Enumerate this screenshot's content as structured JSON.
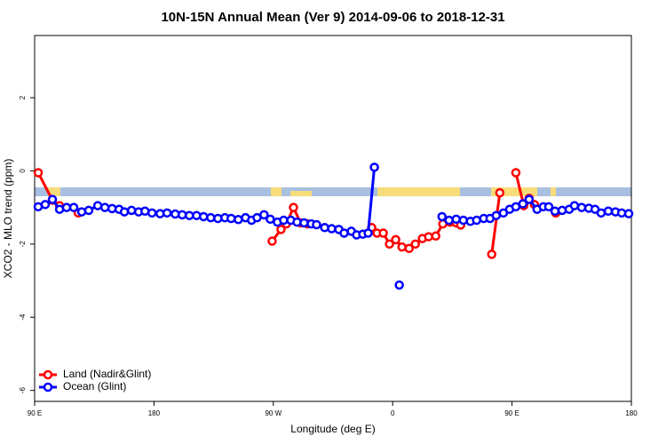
{
  "chart_data": {
    "type": "line",
    "title": "10N-15N Annual Mean (Ver 9)   2014-09-06 to 2018-12-31",
    "x_label": "Longitude (deg E)",
    "y_label": "XCO2 - MLO trend (ppm)",
    "xlim": [
      90,
      540
    ],
    "ylim": [
      -6.3,
      3.7
    ],
    "xticks": [
      {
        "value": 90,
        "label": "90 E"
      },
      180,
      {
        "value": 270,
        "label": "90 W"
      },
      {
        "value": 360,
        "label": "0"
      },
      {
        "value": 450,
        "label": "90 E"
      },
      {
        "value": 540,
        "label": "180"
      }
    ],
    "yticks": [
      2,
      0,
      -2,
      -4,
      -6
    ],
    "legend": "bottom-left",
    "series": [
      {
        "name": "Land (Nadir&Glint)",
        "color": "#ff0000",
        "x": [
          92.7,
          103.4,
          108.8,
          null,
          122.9,
          null,
          269.1,
          275.8,
          279.8,
          285.2,
          290.5,
          295.9,
          null,
          344.2,
          348.2,
          352.9,
          357.6,
          362.3,
          367.0,
          372.4,
          377.1,
          382.4,
          387.1,
          392.5,
          397.8,
          403.2,
          407.9,
          411.3,
          null,
          434.7,
          440.8,
          null,
          452.9,
          458.9,
          462.9,
          466.9,
          null,
          483.0
        ],
        "values": [
          -0.05,
          -0.8,
          -0.95,
          null,
          -1.15,
          null,
          -1.92,
          -1.6,
          -1.45,
          -1.0,
          -1.42,
          -1.45,
          null,
          -1.55,
          -1.7,
          -1.7,
          -2.0,
          -1.88,
          -2.08,
          -2.12,
          -2.0,
          -1.85,
          -1.8,
          -1.78,
          -1.45,
          -1.4,
          -1.42,
          -1.48,
          null,
          -2.28,
          -0.6,
          null,
          -0.05,
          -0.95,
          -0.75,
          -0.92,
          null,
          -1.15
        ]
      },
      {
        "name": "Ocean (Glint)",
        "color": "#0000ff",
        "x": [
          92.7,
          98.0,
          103.4,
          108.8,
          114.1,
          119.5,
          125.5,
          130.8,
          137.6,
          143.0,
          148.4,
          153.7,
          157.7,
          163.1,
          168.4,
          173.2,
          178.5,
          184.6,
          189.9,
          196.0,
          201.3,
          206.7,
          212.1,
          217.4,
          222.8,
          228.2,
          233.5,
          238.2,
          243.6,
          249.0,
          253.6,
          257.7,
          263.0,
          267.7,
          273.1,
          277.8,
          283.2,
          287.9,
          293.2,
          298.6,
          302.6,
          308.7,
          314.0,
          319.4,
          323.4,
          328.8,
          332.8,
          337.5,
          341.5,
          346.2,
          null,
          365.0,
          null,
          397.2,
          402.5,
          407.9,
          413.3,
          418.6,
          423.3,
          428.7,
          433.4,
          438.1,
          443.5,
          448.2,
          452.9,
          458.2,
          462.9,
          468.9,
          473.6,
          477.7,
          482.4,
          487.8,
          493.1,
          497.1,
          502.5,
          507.9,
          512.6,
          517.2,
          522.6,
          528.0,
          532.7,
          538.0
        ],
        "values": [
          -0.98,
          -0.92,
          -0.78,
          -1.05,
          -1.0,
          -1.0,
          -1.12,
          -1.08,
          -0.95,
          -1.0,
          -1.03,
          -1.05,
          -1.12,
          -1.08,
          -1.12,
          -1.1,
          -1.15,
          -1.17,
          -1.15,
          -1.18,
          -1.2,
          -1.22,
          -1.22,
          -1.25,
          -1.28,
          -1.3,
          -1.28,
          -1.3,
          -1.33,
          -1.28,
          -1.35,
          -1.28,
          -1.2,
          -1.32,
          -1.4,
          -1.35,
          -1.35,
          -1.4,
          -1.42,
          -1.45,
          -1.47,
          -1.55,
          -1.58,
          -1.6,
          -1.7,
          -1.65,
          -1.75,
          -1.73,
          -1.7,
          0.1,
          null,
          -3.12,
          null,
          -1.25,
          -1.35,
          -1.32,
          -1.35,
          -1.38,
          -1.35,
          -1.3,
          -1.3,
          -1.22,
          -1.15,
          -1.05,
          -0.98,
          -0.9,
          -0.78,
          -1.05,
          -0.98,
          -0.98,
          -1.1,
          -1.08,
          -1.05,
          -0.95,
          -1.0,
          -1.02,
          -1.05,
          -1.15,
          -1.1,
          -1.12,
          -1.15,
          -1.17
        ]
      }
    ]
  }
}
